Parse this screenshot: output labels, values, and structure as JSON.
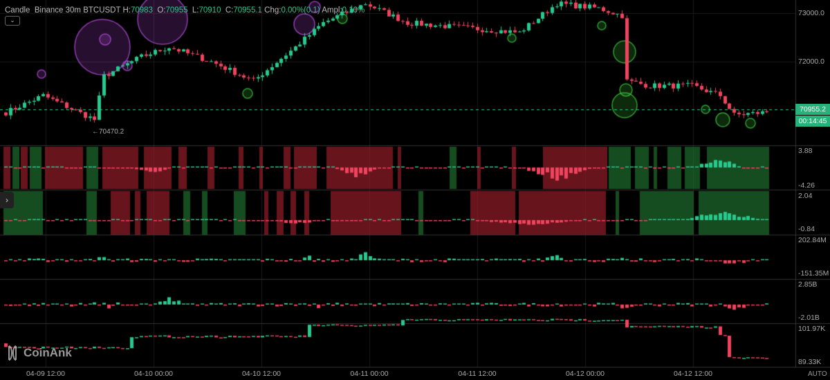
{
  "header": {
    "type": "Candle",
    "exchange": "Binance",
    "interval": "30m",
    "symbol": "BTCUSDT",
    "h_label": "H:",
    "h": "70983",
    "o_label": "O:",
    "o": "70955",
    "l_label": "L:",
    "l": "70910",
    "c_label": "C:",
    "c": "70955.1",
    "chg_label": "Chg:",
    "chg": "0.00%(0.1)",
    "ampl_label": "Ampl:",
    "ampl": "0.10%"
  },
  "main": {
    "price_ticks": [
      "73000.0",
      "72000.0"
    ],
    "last_price": "70955.2",
    "countdown": "00:14:45",
    "low_marker": "←70470.2"
  },
  "panels": [
    {
      "top": "3.88",
      "bottom": "-4.26"
    },
    {
      "top": "2.04",
      "bottom": "-0.84"
    },
    {
      "top": "202.84M",
      "bottom": "-151.35M"
    },
    {
      "top": "2.85B",
      "bottom": "-2.01B"
    },
    {
      "top": "101.97K",
      "bottom": "89.33K"
    }
  ],
  "time_axis": [
    "04-09 12:00",
    "04-10 00:00",
    "04-10 12:00",
    "04-11 00:00",
    "04-11 12:00",
    "04-12 00:00",
    "04-12 12:00"
  ],
  "auto_label": "AUTO",
  "logo_text": "CoinAnk",
  "colors": {
    "up": "#26c98e",
    "down": "#f0435e",
    "bubble_sell": "#b04bd8",
    "bubble_buy": "#3cbf3c",
    "bg": "#000000"
  },
  "chart_data": {
    "type": "candlestick",
    "interval": "30m",
    "price_path": [
      [
        0,
        70950
      ],
      [
        8,
        71300
      ],
      [
        19,
        70800
      ],
      [
        21,
        71700
      ],
      [
        29,
        72100
      ],
      [
        35,
        72300
      ],
      [
        44,
        72000
      ],
      [
        53,
        71600
      ],
      [
        62,
        72300
      ],
      [
        68,
        72800
      ],
      [
        77,
        73200
      ],
      [
        86,
        72800
      ],
      [
        98,
        72700
      ],
      [
        110,
        72600
      ],
      [
        118,
        73200
      ],
      [
        127,
        73100
      ],
      [
        132,
        72950
      ],
      [
        133,
        71600
      ],
      [
        138,
        71500
      ],
      [
        147,
        71500
      ],
      [
        153,
        71300
      ],
      [
        156,
        70900
      ],
      [
        163,
        70955
      ]
    ],
    "low": 70470.2,
    "last": 70955.2
  }
}
